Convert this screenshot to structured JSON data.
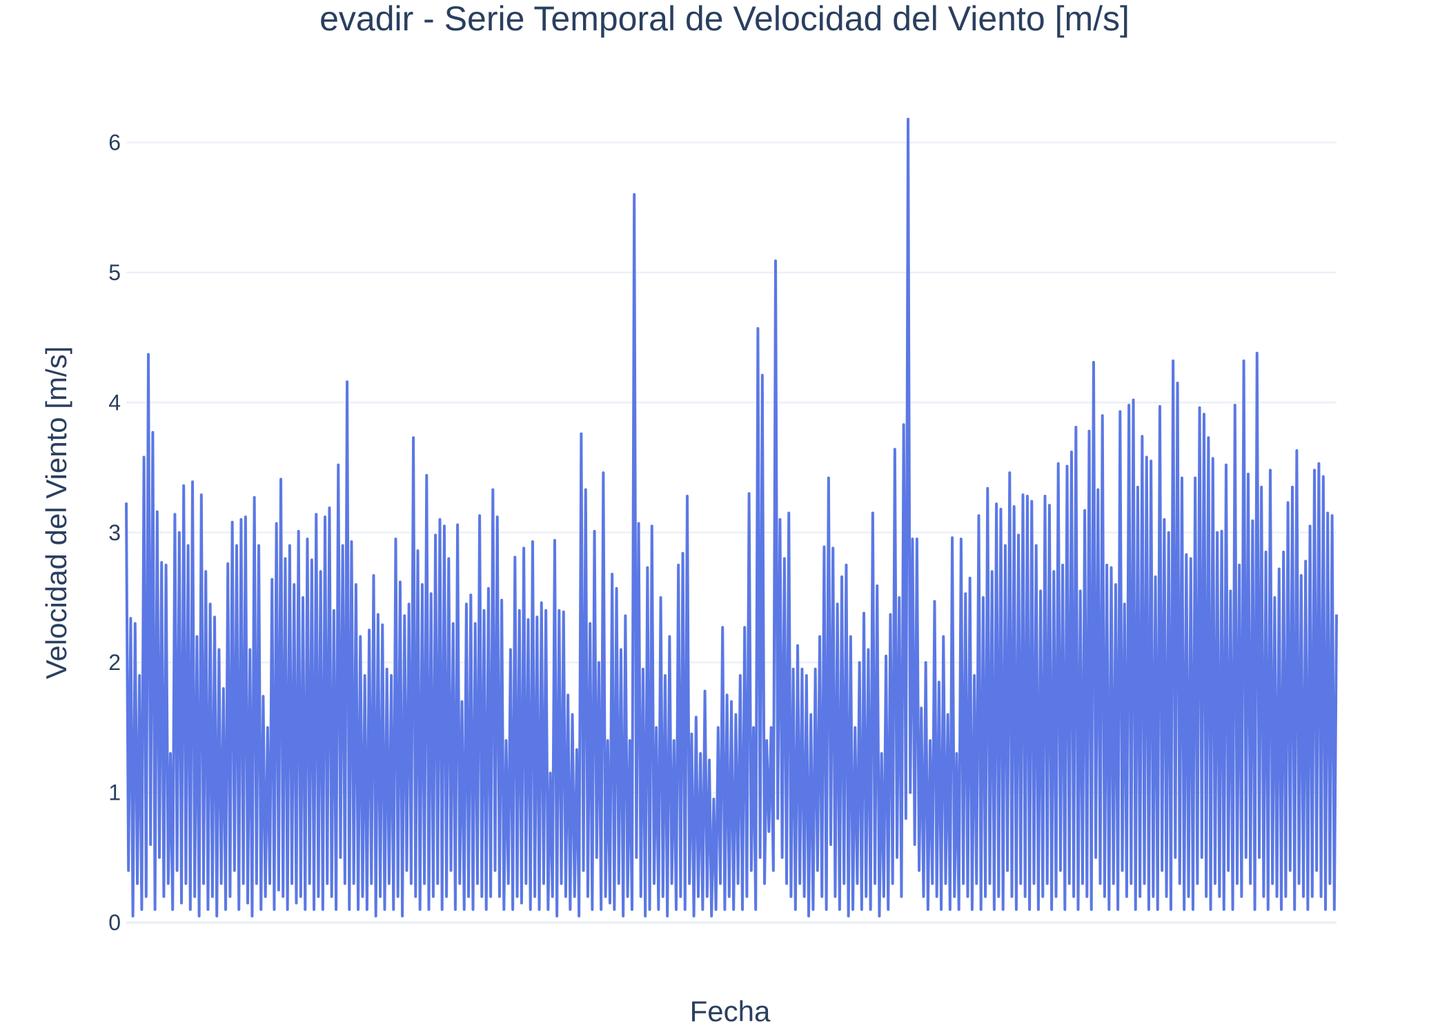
{
  "chart_data": {
    "type": "line",
    "title": "evadir - Serie Temporal de Velocidad del Viento [m/s]",
    "xlabel": "Fecha",
    "ylabel": "Velocidad del Viento [m/s]",
    "ylim": [
      0,
      6.3
    ],
    "yticks": [
      "0",
      "1",
      "2",
      "3",
      "4",
      "5",
      "6"
    ],
    "grid": true,
    "x_tick_labels_visible": false,
    "series": [
      {
        "color": "#5b78e4",
        "values": [
          3.23,
          0.4,
          2.34,
          0.05,
          2.3,
          0.3,
          1.9,
          0.1,
          3.58,
          0.2,
          4.37,
          0.6,
          3.77,
          0.1,
          3.16,
          0.5,
          2.77,
          0.2,
          2.75,
          0.3,
          1.3,
          0.1,
          3.14,
          0.4,
          3.0,
          0.15,
          3.36,
          0.3,
          2.9,
          0.1,
          3.39,
          0.2,
          2.2,
          0.05,
          3.29,
          0.3,
          2.7,
          0.1,
          2.45,
          0.2,
          2.35,
          0.05,
          2.1,
          0.3,
          1.8,
          0.1,
          2.76,
          0.2,
          3.08,
          0.4,
          2.9,
          0.1,
          3.1,
          0.3,
          3.12,
          0.15,
          2.1,
          0.05,
          3.27,
          0.3,
          2.9,
          0.1,
          1.74,
          0.2,
          1.5,
          0.3,
          2.64,
          0.1,
          3.07,
          0.25,
          3.41,
          0.2,
          2.8,
          0.1,
          2.9,
          0.3,
          2.6,
          0.15,
          3.01,
          0.2,
          2.5,
          0.1,
          2.95,
          0.3,
          2.79,
          0.1,
          3.14,
          0.2,
          2.7,
          0.1,
          3.12,
          0.3,
          3.19,
          0.2,
          2.4,
          0.1,
          3.52,
          0.5,
          2.9,
          0.3,
          4.16,
          0.1,
          2.93,
          0.3,
          2.6,
          0.1,
          2.2,
          0.2,
          1.9,
          0.1,
          2.25,
          0.3,
          2.67,
          0.05,
          2.37,
          0.2,
          2.29,
          0.1,
          1.95,
          0.3,
          1.9,
          0.1,
          2.95,
          0.2,
          2.62,
          0.05,
          2.36,
          0.4,
          2.45,
          0.3,
          3.73,
          0.2,
          2.86,
          0.1,
          2.6,
          0.3,
          3.44,
          0.1,
          2.53,
          0.2,
          2.98,
          0.3,
          3.1,
          0.1,
          3.05,
          0.2,
          2.8,
          0.4,
          2.3,
          0.1,
          3.06,
          0.3,
          1.7,
          0.1,
          2.45,
          0.2,
          2.52,
          0.1,
          2.3,
          0.3,
          3.13,
          0.2,
          2.4,
          0.1,
          2.57,
          0.2,
          3.33,
          0.4,
          3.12,
          0.2,
          2.48,
          0.1,
          1.4,
          0.3,
          2.1,
          0.1,
          2.81,
          0.2,
          2.4,
          0.15,
          2.88,
          0.3,
          2.33,
          0.1,
          2.93,
          0.2,
          2.35,
          0.1,
          2.46,
          0.3,
          2.4,
          0.1,
          1.15,
          0.2,
          2.94,
          0.05,
          2.4,
          0.3,
          2.39,
          0.2,
          1.75,
          0.1,
          1.6,
          0.2,
          1.33,
          0.05,
          3.76,
          0.4,
          3.33,
          0.2,
          2.3,
          0.1,
          3.01,
          0.5,
          2.0,
          0.1,
          3.46,
          0.2,
          1.4,
          0.15,
          2.68,
          0.1,
          2.57,
          0.3,
          2.1,
          0.05,
          2.36,
          0.2,
          1.4,
          0.1,
          5.6,
          0.5,
          3.07,
          0.2,
          1.95,
          0.05,
          2.73,
          0.1,
          3.05,
          0.3,
          1.5,
          0.1,
          2.5,
          0.2,
          1.9,
          0.05,
          2.2,
          0.3,
          1.4,
          0.1,
          2.75,
          0.2,
          2.84,
          0.1,
          3.28,
          0.3,
          1.45,
          0.05,
          1.58,
          0.2,
          1.3,
          0.1,
          1.78,
          0.2,
          1.25,
          0.05,
          0.95,
          0.1,
          1.5,
          0.3,
          2.27,
          0.1,
          1.75,
          0.2,
          1.7,
          0.1,
          1.6,
          0.3,
          1.9,
          0.1,
          2.27,
          0.2,
          3.3,
          0.4,
          1.5,
          0.1,
          4.57,
          0.5,
          4.21,
          0.3,
          1.4,
          0.7,
          1.5,
          0.4,
          5.09,
          0.8,
          3.1,
          0.5,
          2.8,
          0.3,
          3.15,
          0.2,
          1.95,
          0.1,
          2.13,
          0.3,
          1.95,
          0.2,
          1.9,
          0.05,
          1.6,
          0.1,
          1.95,
          0.4,
          2.2,
          0.2,
          2.89,
          0.1,
          3.42,
          0.6,
          2.88,
          0.2,
          2.45,
          0.1,
          2.66,
          0.3,
          2.75,
          0.05,
          2.2,
          0.1,
          1.5,
          0.3,
          2.0,
          0.1,
          2.38,
          0.2,
          2.1,
          0.1,
          3.15,
          0.3,
          2.59,
          0.05,
          1.3,
          0.2,
          2.05,
          0.1,
          2.37,
          0.3,
          3.64,
          0.5,
          2.5,
          0.2,
          3.83,
          0.8,
          6.18,
          1.0,
          2.95,
          0.6,
          2.95,
          0.4,
          1.65,
          0.2,
          2.0,
          0.1,
          1.4,
          0.3,
          2.47,
          0.2,
          1.85,
          0.1,
          2.2,
          0.3,
          1.6,
          0.1,
          2.96,
          0.2,
          1.3,
          0.1,
          2.95,
          0.3,
          2.53,
          0.2,
          2.65,
          0.1,
          1.9,
          0.3,
          3.13,
          0.1,
          2.5,
          0.2,
          3.34,
          0.3,
          2.7,
          0.1,
          3.22,
          0.2,
          3.18,
          0.1,
          2.9,
          0.4,
          3.46,
          0.2,
          3.2,
          0.1,
          2.98,
          0.3,
          3.29,
          0.2,
          3.28,
          0.1,
          3.24,
          0.3,
          2.9,
          0.1,
          2.55,
          0.2,
          3.28,
          0.3,
          3.21,
          0.1,
          2.7,
          0.2,
          3.53,
          0.4,
          2.75,
          0.1,
          3.51,
          0.3,
          3.62,
          0.2,
          3.81,
          0.1,
          2.55,
          0.3,
          3.17,
          0.2,
          3.78,
          0.1,
          4.31,
          0.5,
          3.33,
          0.3,
          3.9,
          0.2,
          2.75,
          0.1,
          2.73,
          0.3,
          2.6,
          0.1,
          3.93,
          0.4,
          2.45,
          0.2,
          3.98,
          0.3,
          4.02,
          0.1,
          3.35,
          0.2,
          3.74,
          0.3,
          3.58,
          0.1,
          3.55,
          0.2,
          2.66,
          0.1,
          3.97,
          0.4,
          3.1,
          0.2,
          3.0,
          0.1,
          4.32,
          0.5,
          4.15,
          0.3,
          3.42,
          0.1,
          2.83,
          0.2,
          2.8,
          0.1,
          3.42,
          0.3,
          3.96,
          0.5,
          3.91,
          0.2,
          3.73,
          0.1,
          3.57,
          0.3,
          3.0,
          0.2,
          3.01,
          0.1,
          3.52,
          0.4,
          2.55,
          0.1,
          3.98,
          0.3,
          2.75,
          0.2,
          4.32,
          0.5,
          3.45,
          0.3,
          3.09,
          0.1,
          4.38,
          0.5,
          3.35,
          0.2,
          2.85,
          0.1,
          3.48,
          0.3,
          2.5,
          0.2,
          2.72,
          0.1,
          2.85,
          0.2,
          3.23,
          0.4,
          3.35,
          0.1,
          3.63,
          0.3,
          2.67,
          0.2,
          2.78,
          0.1,
          3.05,
          0.2,
          3.48,
          0.4,
          3.53,
          0.2,
          3.43,
          0.1,
          3.15,
          0.3,
          3.13,
          0.1,
          2.37
        ]
      }
    ]
  }
}
